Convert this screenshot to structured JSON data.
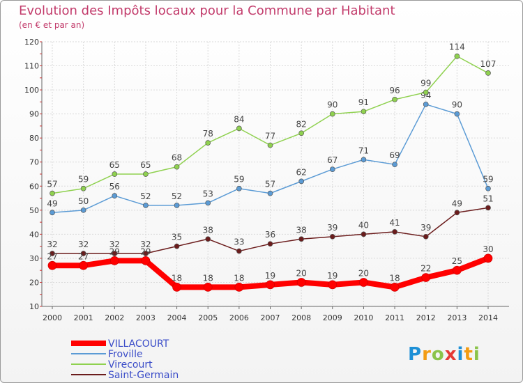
{
  "chart_data": {
    "type": "line",
    "title": "Evolution des Impôts locaux pour la Commune par Habitant",
    "subtitle": "(en € et par an)",
    "xlabel": "",
    "ylabel": "",
    "x": [
      "2000",
      "2001",
      "2002",
      "2003",
      "2004",
      "2005",
      "2006",
      "2007",
      "2008",
      "2009",
      "2010",
      "2011",
      "2012",
      "2013",
      "2014"
    ],
    "ylim": [
      10,
      120
    ],
    "yticks": [
      10,
      20,
      30,
      40,
      50,
      60,
      70,
      80,
      90,
      100,
      110,
      120
    ],
    "grid": true,
    "legend_position": "bottom-left",
    "series": [
      {
        "name": "VILLACOURT",
        "color": "#ff0000",
        "values": [
          27,
          27,
          29,
          29,
          18,
          18,
          18,
          19,
          20,
          19,
          20,
          18,
          22,
          25,
          30
        ]
      },
      {
        "name": "Froville",
        "color": "#5b9bd5",
        "values": [
          49,
          50,
          56,
          52,
          52,
          53,
          59,
          57,
          62,
          67,
          71,
          69,
          94,
          90,
          59
        ]
      },
      {
        "name": "Virecourt",
        "color": "#8fd14f",
        "values": [
          57,
          59,
          65,
          65,
          68,
          78,
          84,
          77,
          82,
          90,
          91,
          96,
          99,
          114,
          107
        ]
      },
      {
        "name": "Saint-Germain",
        "color": "#6b1c1c",
        "values": [
          32,
          32,
          32,
          32,
          35,
          38,
          33,
          36,
          38,
          39,
          40,
          41,
          39,
          49,
          51
        ]
      }
    ]
  },
  "branding": {
    "logo_text": "Proxiti"
  }
}
